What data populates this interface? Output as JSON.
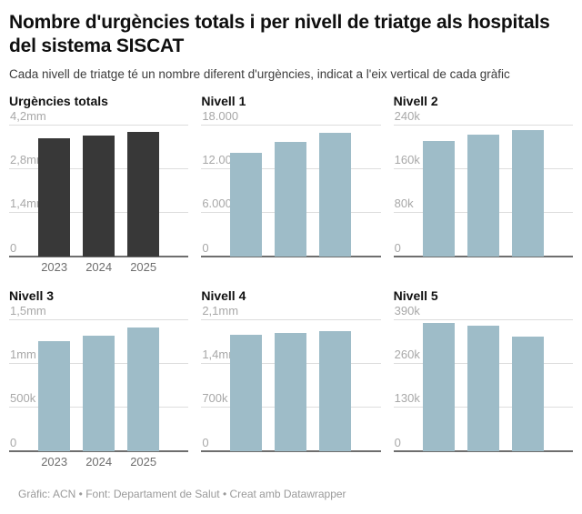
{
  "header": {
    "title": "Nombre d'urgències totals i per nivell de triatge als hospitals del sistema SISCAT",
    "subtitle": "Cada nivell de triatge té un nombre diferent d'urgències, indicat a l'eix vertical de cada gràfic"
  },
  "footer": {
    "text": "Gràfic: ACN • Font: Departament de Salut • Creat amb Datawrapper"
  },
  "colors": {
    "dark_bar": "#383838",
    "blue_bar": "#9ebcc8",
    "gridline": "#dddddd",
    "axis_line": "#6e6e6e",
    "tick_label": "#a8a8a8"
  },
  "chart_data": [
    {
      "type": "bar",
      "title": "Urgències totals",
      "categories": [
        "2023",
        "2024",
        "2025"
      ],
      "values": [
        3740000,
        3840000,
        3950000
      ],
      "ymax": 4200000,
      "ylim": [
        0,
        4200000
      ],
      "yticks": [
        "0",
        "1,4mm",
        "2,8mm",
        "4,2mm"
      ],
      "x_tick_labels": [
        "2023",
        "2024",
        "2025"
      ],
      "bar_color": "#383838",
      "grid": "horizontal"
    },
    {
      "type": "bar",
      "title": "Nivell 1",
      "categories": [
        "2023",
        "2024",
        "2025"
      ],
      "values": [
        14100,
        15600,
        16800
      ],
      "ymax": 18000,
      "ylim": [
        0,
        18000
      ],
      "yticks": [
        "0",
        "6.000",
        "12.000",
        "18.000"
      ],
      "x_tick_labels": [],
      "bar_color": "#9ebcc8",
      "grid": "horizontal"
    },
    {
      "type": "bar",
      "title": "Nivell 2",
      "categories": [
        "2023",
        "2024",
        "2025"
      ],
      "values": [
        210000,
        221000,
        230000
      ],
      "ymax": 240000,
      "ylim": [
        0,
        240000
      ],
      "yticks": [
        "0",
        "80k",
        "160k",
        "240k"
      ],
      "x_tick_labels": [],
      "bar_color": "#9ebcc8",
      "grid": "horizontal"
    },
    {
      "type": "bar",
      "title": "Nivell 3",
      "categories": [
        "2023",
        "2024",
        "2025"
      ],
      "values": [
        1250000,
        1310000,
        1400000
      ],
      "ymax": 1500000,
      "ylim": [
        0,
        1500000
      ],
      "yticks": [
        "0",
        "500k",
        "1mm",
        "1,5mm"
      ],
      "x_tick_labels": [
        "2023",
        "2024",
        "2025"
      ],
      "bar_color": "#9ebcc8",
      "grid": "horizontal"
    },
    {
      "type": "bar",
      "title": "Nivell 4",
      "categories": [
        "2023",
        "2024",
        "2025"
      ],
      "values": [
        1850000,
        1870000,
        1910000
      ],
      "ymax": 2100000,
      "ylim": [
        0,
        2100000
      ],
      "yticks": [
        "0",
        "700k",
        "1,4mm",
        "2,1mm"
      ],
      "x_tick_labels": [],
      "bar_color": "#9ebcc8",
      "grid": "horizontal"
    },
    {
      "type": "bar",
      "title": "Nivell 5",
      "categories": [
        "2023",
        "2024",
        "2025"
      ],
      "values": [
        379000,
        371000,
        338000
      ],
      "ymax": 390000,
      "ylim": [
        0,
        390000
      ],
      "yticks": [
        "0",
        "130k",
        "260k",
        "390k"
      ],
      "x_tick_labels": [],
      "bar_color": "#9ebcc8",
      "grid": "horizontal"
    }
  ]
}
